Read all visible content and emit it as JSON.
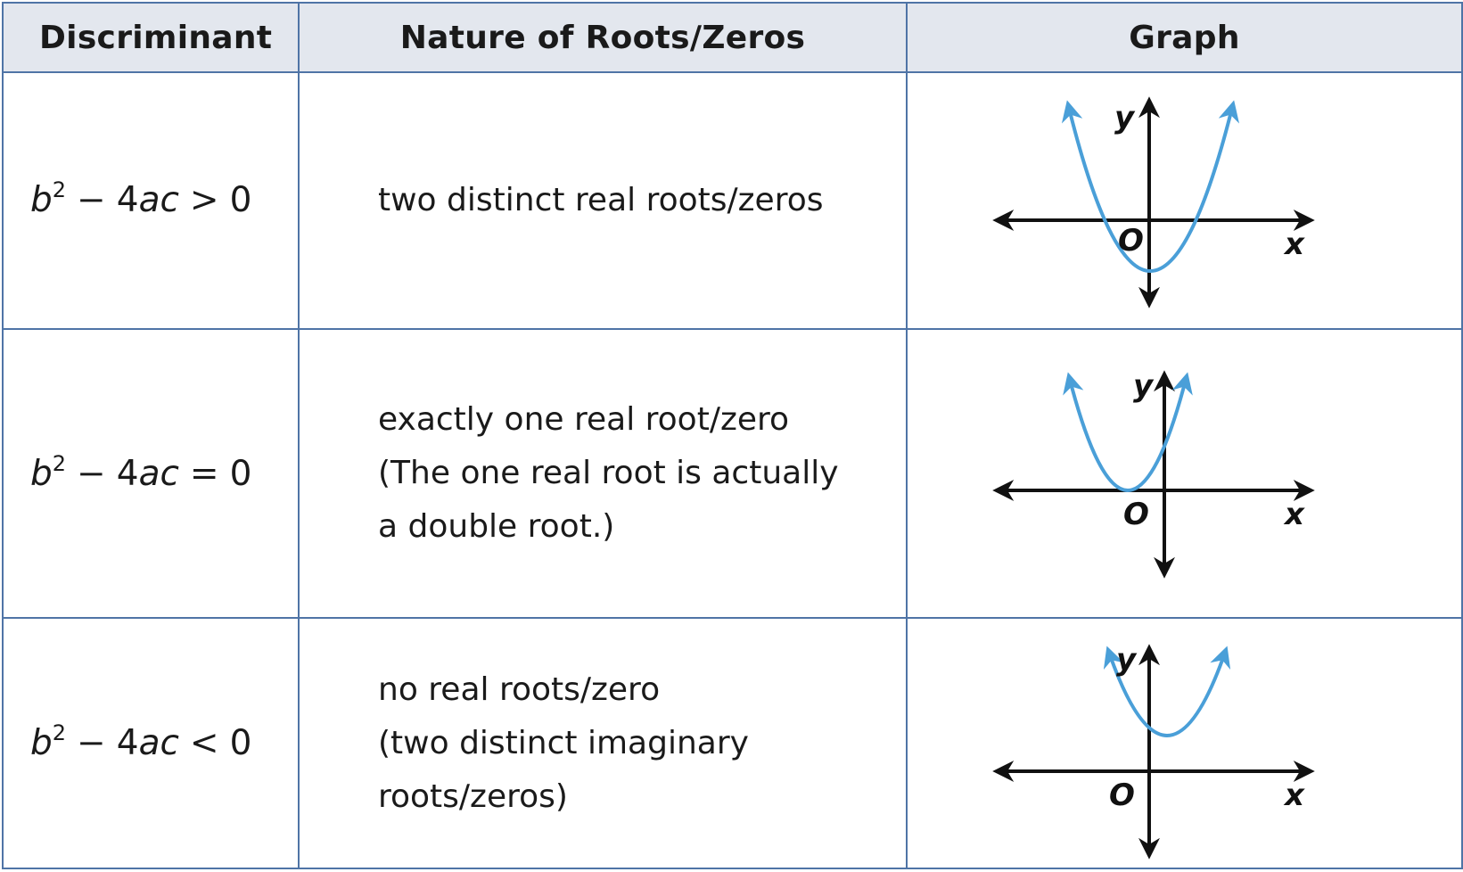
{
  "table": {
    "headers": {
      "discriminant": "Discriminant",
      "nature": "Nature of Roots/Zeros",
      "graph": "Graph"
    },
    "rows": [
      {
        "disc": {
          "b": "b",
          "exp": "2",
          "minus": "−",
          "four": "4",
          "ac": "ac",
          "relation": ">",
          "zero": "0"
        },
        "nature": [
          "two distinct real roots/zeros"
        ],
        "graph_case": "two real roots"
      },
      {
        "disc": {
          "b": "b",
          "exp": "2",
          "minus": "−",
          "four": "4",
          "ac": "ac",
          "relation": "=",
          "zero": "0"
        },
        "nature": [
          "exactly one real root/zero",
          "(The one real root is actually",
          "a double root.)"
        ],
        "graph_case": "one real root"
      },
      {
        "disc": {
          "b": "b",
          "exp": "2",
          "minus": "−",
          "four": "4",
          "ac": "ac",
          "relation": "<",
          "zero": "0"
        },
        "nature": [
          "no real roots/zero",
          "(two distinct imaginary",
          "roots/zeros)"
        ],
        "graph_case": "no real roots"
      }
    ]
  },
  "graph_labels": {
    "x": "x",
    "y": "y",
    "origin": "O"
  },
  "colors": {
    "parabola": "#4a9fd8",
    "axes": "#111111",
    "header_bg": "#e3e7ee",
    "grid_border": "#4f74a6"
  }
}
